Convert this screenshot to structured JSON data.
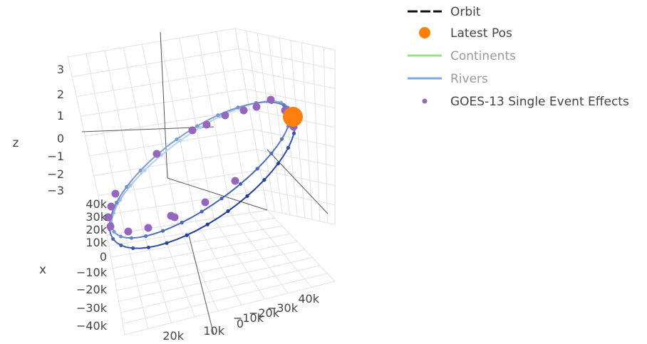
{
  "chart_data": {
    "type": "scatter",
    "subtype": "3d-scatter-with-lines",
    "axes": {
      "x": {
        "label": "x",
        "ticks": [
          "40k",
          "30k",
          "20k",
          "10k",
          "0",
          "−10k",
          "−20k",
          "−30k",
          "−40k"
        ]
      },
      "y": {
        "label": "",
        "ticks": [
          "20k",
          "10k",
          "0",
          "−10k",
          "−20k",
          "−30k",
          "40k"
        ]
      },
      "z": {
        "label": "z",
        "ticks": [
          "3",
          "2",
          "1",
          "0",
          "−1",
          "−2",
          "−3"
        ]
      }
    },
    "grid": true,
    "legend_placement": "top-right",
    "legend": [
      {
        "name": "Orbit",
        "marker": "dash-line",
        "color": "#111111",
        "muted": false
      },
      {
        "name": "Latest Pos",
        "marker": "circle",
        "color": "#ff7f0e",
        "muted": false
      },
      {
        "name": "Continents",
        "marker": "line",
        "color": "#98df8a",
        "muted": true
      },
      {
        "name": "Rivers",
        "marker": "line",
        "color": "#7ea6e0",
        "muted": true
      },
      {
        "name": "GOES-13 Single Event Effects",
        "marker": "small-circle",
        "color": "#9467bd",
        "muted": false
      }
    ],
    "series": [
      {
        "name": "Orbit",
        "color_near": "#1f3a93",
        "color_far": "#b3d4f2"
      },
      {
        "name": "Latest Pos",
        "color": "#ff7f0e"
      },
      {
        "name": "GOES-13 Single Event Effects",
        "color": "#9467bd"
      }
    ]
  },
  "colors": {
    "grid": "#e2e2e2",
    "axis": "#444444",
    "text": "#444444",
    "legend_muted_text": "#999999"
  }
}
